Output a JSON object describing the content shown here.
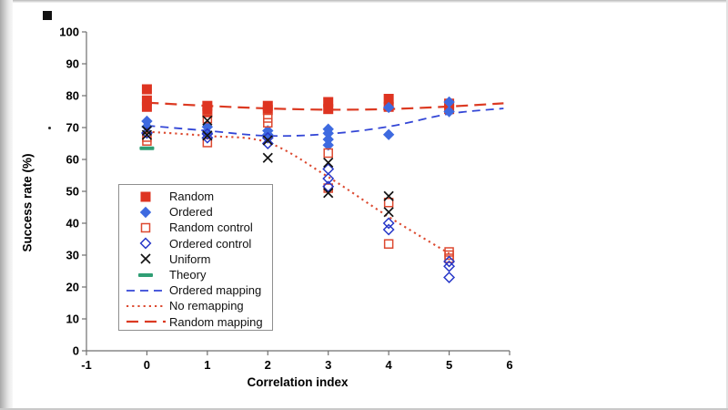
{
  "axis_color": "#6f6f6f",
  "chart_data": {
    "type": "scatter",
    "xlabel": "Correlation index",
    "ylabel": "Success rate (%)",
    "xlim": [
      -1,
      6
    ],
    "ylim": [
      0,
      100
    ],
    "x_ticks": [
      -1,
      0,
      1,
      2,
      3,
      4,
      5,
      6
    ],
    "y_ticks": [
      0,
      10,
      20,
      30,
      40,
      50,
      60,
      70,
      80,
      90,
      100
    ],
    "grid": false,
    "legend_position": "inside-left",
    "series": [
      {
        "name": "Random",
        "marker": "square-filled",
        "color": "#DE3421",
        "points": [
          [
            0,
            82
          ],
          [
            0,
            78.5
          ],
          [
            0,
            76.5
          ],
          [
            1,
            76.8
          ],
          [
            1,
            74.8
          ],
          [
            2,
            76.8
          ],
          [
            2,
            75.5
          ],
          [
            3,
            78
          ],
          [
            3,
            75.8
          ],
          [
            4,
            79
          ],
          [
            4,
            76.5
          ],
          [
            5,
            77.5
          ],
          [
            5,
            75.8
          ]
        ]
      },
      {
        "name": "Ordered",
        "marker": "diamond-filled",
        "color": "#3E6AE0",
        "points": [
          [
            0,
            72
          ],
          [
            0,
            70.3
          ],
          [
            1,
            70.2
          ],
          [
            1,
            68.3
          ],
          [
            2,
            69
          ],
          [
            2,
            67.8
          ],
          [
            3,
            69.5
          ],
          [
            3,
            68.2
          ],
          [
            3,
            66.3
          ],
          [
            3,
            64.5
          ],
          [
            4,
            76.3
          ],
          [
            4,
            67.8
          ],
          [
            5,
            78
          ],
          [
            5,
            75
          ]
        ]
      },
      {
        "name": "Random control",
        "marker": "square-open",
        "color": "#DD4930",
        "points": [
          [
            0,
            67
          ],
          [
            0,
            65.8
          ],
          [
            1,
            72.8
          ],
          [
            1,
            65.3
          ],
          [
            2,
            73
          ],
          [
            2,
            71.5
          ],
          [
            3,
            62
          ],
          [
            3,
            51
          ],
          [
            4,
            46.5
          ],
          [
            4,
            33.5
          ],
          [
            5,
            31
          ],
          [
            5,
            30
          ],
          [
            5,
            29
          ]
        ]
      },
      {
        "name": "Ordered control",
        "marker": "diamond-open",
        "color": "#2838C8",
        "points": [
          [
            0,
            68.3
          ],
          [
            1,
            68
          ],
          [
            1,
            66.8
          ],
          [
            2,
            66.8
          ],
          [
            2,
            65
          ],
          [
            3,
            57
          ],
          [
            3,
            54
          ],
          [
            3,
            51.5
          ],
          [
            4,
            40
          ],
          [
            4,
            38
          ],
          [
            5,
            28
          ],
          [
            5,
            26.5
          ],
          [
            5,
            23
          ]
        ]
      },
      {
        "name": "Uniform",
        "marker": "x",
        "color": "#141414",
        "points": [
          [
            0,
            69
          ],
          [
            0,
            67.7
          ],
          [
            1,
            72.2
          ],
          [
            1,
            67.5
          ],
          [
            2,
            66
          ],
          [
            2,
            60.5
          ],
          [
            3,
            59
          ],
          [
            3,
            49.5
          ],
          [
            4,
            48.5
          ],
          [
            4,
            43.5
          ]
        ]
      },
      {
        "name": "Theory",
        "marker": "dash",
        "color": "#2F9E74",
        "points": [
          [
            0,
            63.5
          ]
        ]
      }
    ],
    "lines": [
      {
        "name": "Ordered mapping",
        "style": "dashed",
        "color": "#3346D6",
        "points": [
          [
            0,
            70.6
          ],
          [
            1,
            69
          ],
          [
            2,
            67.4
          ],
          [
            3,
            68
          ],
          [
            4,
            70.3
          ],
          [
            5,
            74.3
          ],
          [
            5.9,
            76
          ]
        ]
      },
      {
        "name": "No remapping",
        "style": "dotted",
        "color": "#DC4A30",
        "points": [
          [
            0,
            68.7
          ],
          [
            1,
            67.4
          ],
          [
            2,
            65.3
          ],
          [
            3,
            54.5
          ],
          [
            4,
            42
          ],
          [
            5,
            30.5
          ]
        ]
      },
      {
        "name": "Random mapping",
        "style": "longdash",
        "color": "#DC3A22",
        "points": [
          [
            0,
            77.8
          ],
          [
            1,
            76.8
          ],
          [
            2,
            76
          ],
          [
            3,
            75.6
          ],
          [
            4,
            75.8
          ],
          [
            5,
            76.6
          ],
          [
            5.9,
            77.6
          ]
        ]
      }
    ]
  }
}
